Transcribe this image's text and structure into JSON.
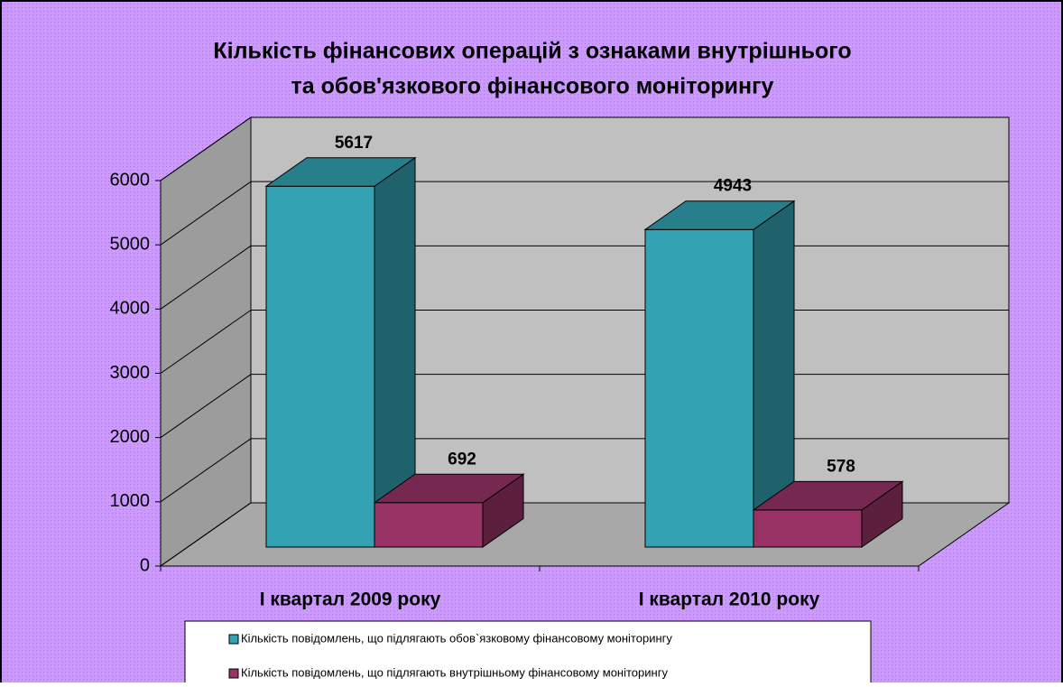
{
  "chart_data": {
    "type": "bar3d",
    "title": [
      "Кількість фінансових операцій з ознаками внутрішнього",
      "та обов'язкового фінансового моніторингу"
    ],
    "categories": [
      "І квартал 2009 року",
      "І квартал 2010 року"
    ],
    "series": [
      {
        "name": "Кількість повідомлень, що підлягають обов`язковому фінансовому моніторингу",
        "color": "#33a3b3",
        "values": [
          5617,
          4943
        ]
      },
      {
        "name": "Кількість повідомлень, що підлягають внутрішньому фінансовому моніторингу",
        "color": "#993366",
        "values": [
          692,
          578
        ]
      }
    ],
    "ylim": [
      0,
      6000
    ],
    "yticks": [
      0,
      1000,
      2000,
      3000,
      4000,
      5000,
      6000
    ],
    "grid": true
  }
}
